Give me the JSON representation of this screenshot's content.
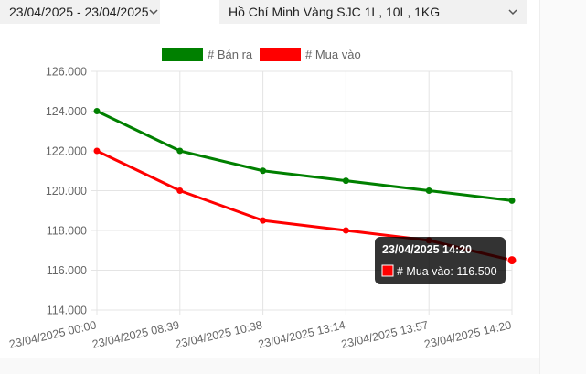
{
  "filters": {
    "date_range": "23/04/2025 - 23/04/2025",
    "product": "Hồ Chí Minh Vàng SJC 1L, 10L, 1KG"
  },
  "chart_data": {
    "type": "line",
    "categories": [
      "23/04/2025 00:00",
      "23/04/2025 08:39",
      "23/04/2025 10:38",
      "23/04/2025 13:14",
      "23/04/2025 13:57",
      "23/04/2025 14:20"
    ],
    "series": [
      {
        "name": "# Bán ra",
        "color": "#008000",
        "values": [
          124000,
          122000,
          121000,
          120500,
          120000,
          119500
        ]
      },
      {
        "name": "# Mua vào",
        "color": "#ff0000",
        "values": [
          122000,
          120000,
          118500,
          118000,
          117500,
          116500
        ]
      }
    ],
    "ylim": [
      114000,
      126000
    ],
    "yticks": [
      "114.000",
      "116.000",
      "118.000",
      "120.000",
      "122.000",
      "124.000",
      "126.000"
    ],
    "legend": "top",
    "grid": true,
    "tooltip": {
      "title": "23/04/2025 14:20",
      "label": "# Mua vào: 116.500",
      "color": "#ff0000"
    }
  }
}
